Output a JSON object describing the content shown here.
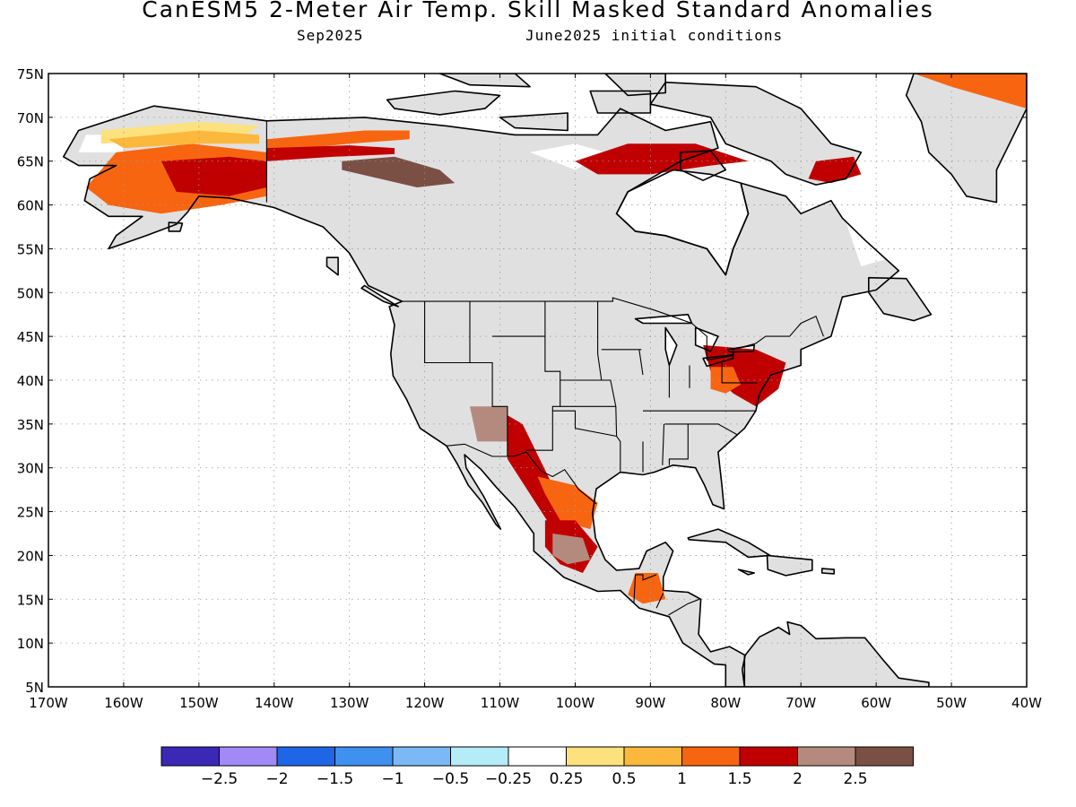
{
  "title": "CanESM5 2-Meter Air Temp. Skill Masked Standard Anomalies",
  "subtitle_left": "Sep2025",
  "subtitle_right": "June2025 initial conditions",
  "colors": {
    "neutral_mask": "#e0e0e0",
    "coast": "#000000",
    "bins": [
      "#3b28b5",
      "#a18af5",
      "#1f66e6",
      "#3f90ef",
      "#7ab9f5",
      "#b4ecf7",
      "#ffffff",
      "#fde17c",
      "#fbb83c",
      "#f86510",
      "#c00000",
      "#b58a7e",
      "#7a4f44"
    ]
  },
  "map": {
    "lon_range": [
      -170,
      -40
    ],
    "lat_range": [
      5,
      75
    ],
    "lat_ticks": [
      "75N",
      "70N",
      "65N",
      "60N",
      "55N",
      "50N",
      "45N",
      "40N",
      "35N",
      "30N",
      "25N",
      "20N",
      "15N",
      "10N",
      "5N"
    ],
    "lon_ticks": [
      "170W",
      "160W",
      "150W",
      "140W",
      "130W",
      "120W",
      "110W",
      "100W",
      "90W",
      "80W",
      "70W",
      "60W",
      "50W",
      "40W"
    ],
    "anomaly_patches": [
      {
        "region": "Alaska interior",
        "level": "1.5-2",
        "coords": [
          [
            -161,
            66
          ],
          [
            -151,
            67
          ],
          [
            -141,
            66
          ],
          [
            -141,
            61
          ],
          [
            -147,
            60
          ],
          [
            -155,
            59
          ],
          [
            -162,
            60
          ],
          [
            -165,
            62
          ]
        ]
      },
      {
        "region": "Alaska core",
        "level": "2-2.5",
        "coords": [
          [
            -155,
            65
          ],
          [
            -146,
            65.5
          ],
          [
            -141,
            65
          ],
          [
            -141,
            62
          ],
          [
            -146,
            61
          ],
          [
            -153,
            61.5
          ]
        ]
      },
      {
        "region": "Alaska north band",
        "level": "0.25-0.5",
        "coords": [
          [
            -163,
            68.5
          ],
          [
            -150,
            69.5
          ],
          [
            -142,
            69
          ],
          [
            -144,
            68
          ],
          [
            -155,
            67.5
          ],
          [
            -163,
            67
          ]
        ]
      },
      {
        "region": "Alaska band",
        "level": "0.5-1",
        "coords": [
          [
            -162,
            67.5
          ],
          [
            -150,
            68.5
          ],
          [
            -142,
            68
          ],
          [
            -142,
            67
          ],
          [
            -150,
            67
          ],
          [
            -160,
            66.5
          ]
        ]
      },
      {
        "region": "Yukon band",
        "level": "1.5-2",
        "coords": [
          [
            -141,
            67.5
          ],
          [
            -128,
            68.5
          ],
          [
            -122,
            68.5
          ],
          [
            -122,
            67.5
          ],
          [
            -130,
            67
          ],
          [
            -141,
            66
          ]
        ]
      },
      {
        "region": "Yukon core",
        "level": "2-2.5",
        "coords": [
          [
            -141,
            66.5
          ],
          [
            -130,
            66.8
          ],
          [
            -124,
            66.5
          ],
          [
            -124,
            65.8
          ],
          [
            -132,
            65.5
          ],
          [
            -141,
            65
          ]
        ]
      },
      {
        "region": "Mackenzie",
        "level": ">2.5",
        "coords": [
          [
            -131,
            65
          ],
          [
            -124,
            65.5
          ],
          [
            -118,
            64
          ],
          [
            -116,
            62.5
          ],
          [
            -121,
            62
          ],
          [
            -126,
            63
          ],
          [
            -131,
            64
          ]
        ]
      },
      {
        "region": "Nunavut",
        "level": "2-2.5",
        "coords": [
          [
            -93,
            67
          ],
          [
            -84,
            67
          ],
          [
            -77,
            65
          ],
          [
            -82,
            64.5
          ],
          [
            -90,
            63.5
          ],
          [
            -97,
            63.5
          ],
          [
            -100,
            65
          ]
        ]
      },
      {
        "region": "Baffin",
        "level": "2-2.5",
        "coords": [
          [
            -68,
            65
          ],
          [
            -63,
            65.5
          ],
          [
            -62,
            63.5
          ],
          [
            -66,
            62.5
          ],
          [
            -69,
            63
          ]
        ]
      },
      {
        "region": "Greenland east",
        "level": "1.5-2",
        "coords": [
          [
            -40,
            75
          ],
          [
            -40,
            71
          ],
          [
            -44,
            72
          ],
          [
            -50,
            73.5
          ],
          [
            -55,
            75
          ]
        ]
      },
      {
        "region": "Northeast US",
        "level": "2-2.5",
        "coords": [
          [
            -83,
            44
          ],
          [
            -76,
            43.5
          ],
          [
            -72,
            42
          ],
          [
            -73,
            39
          ],
          [
            -76,
            37
          ],
          [
            -79,
            38.5
          ],
          [
            -82,
            41
          ]
        ]
      },
      {
        "region": "Ohio Valley",
        "level": "1.5-2",
        "coords": [
          [
            -82,
            41.5
          ],
          [
            -79,
            41.5
          ],
          [
            -78,
            39.5
          ],
          [
            -80,
            38.5
          ],
          [
            -82,
            39
          ]
        ]
      },
      {
        "region": "Mexico NW ridge",
        "level": "2-2.5",
        "coords": [
          [
            -109,
            36
          ],
          [
            -107,
            35
          ],
          [
            -103,
            28
          ],
          [
            -101,
            25
          ],
          [
            -103,
            23
          ],
          [
            -106,
            27
          ],
          [
            -109,
            31
          ]
        ]
      },
      {
        "region": "Mexico central",
        "level": "1.5-2",
        "coords": [
          [
            -105,
            29
          ],
          [
            -100,
            28
          ],
          [
            -97,
            26
          ],
          [
            -98,
            23
          ],
          [
            -102,
            24
          ],
          [
            -104,
            27
          ]
        ]
      },
      {
        "region": "Mexico south",
        "level": "2-2.5",
        "coords": [
          [
            -104,
            24
          ],
          [
            -100,
            24
          ],
          [
            -97,
            21
          ],
          [
            -99,
            18
          ],
          [
            -102,
            19
          ],
          [
            -104,
            21
          ]
        ]
      },
      {
        "region": "Mexico interior",
        "level": ">2.5-brown",
        "coords": [
          [
            -103,
            22.5
          ],
          [
            -99,
            22
          ],
          [
            -98,
            19.5
          ],
          [
            -101,
            19
          ],
          [
            -103,
            20
          ]
        ]
      },
      {
        "region": "Central America",
        "level": "1.5-2",
        "coords": [
          [
            -92,
            18
          ],
          [
            -89,
            18
          ],
          [
            -88,
            15
          ],
          [
            -91,
            14.5
          ],
          [
            -93,
            15.5
          ]
        ]
      },
      {
        "region": "Arizona",
        "level": ">2.5-brown",
        "coords": [
          [
            -114,
            37
          ],
          [
            -109,
            37
          ],
          [
            -109,
            33
          ],
          [
            -113,
            33
          ]
        ]
      }
    ]
  },
  "colorbar": {
    "labels": [
      "−2.5",
      "−2",
      "−1.5",
      "−1",
      "−0.5",
      "−0.25",
      "0.25",
      "0.5",
      "1",
      "1.5",
      "2",
      "2.5"
    ]
  }
}
